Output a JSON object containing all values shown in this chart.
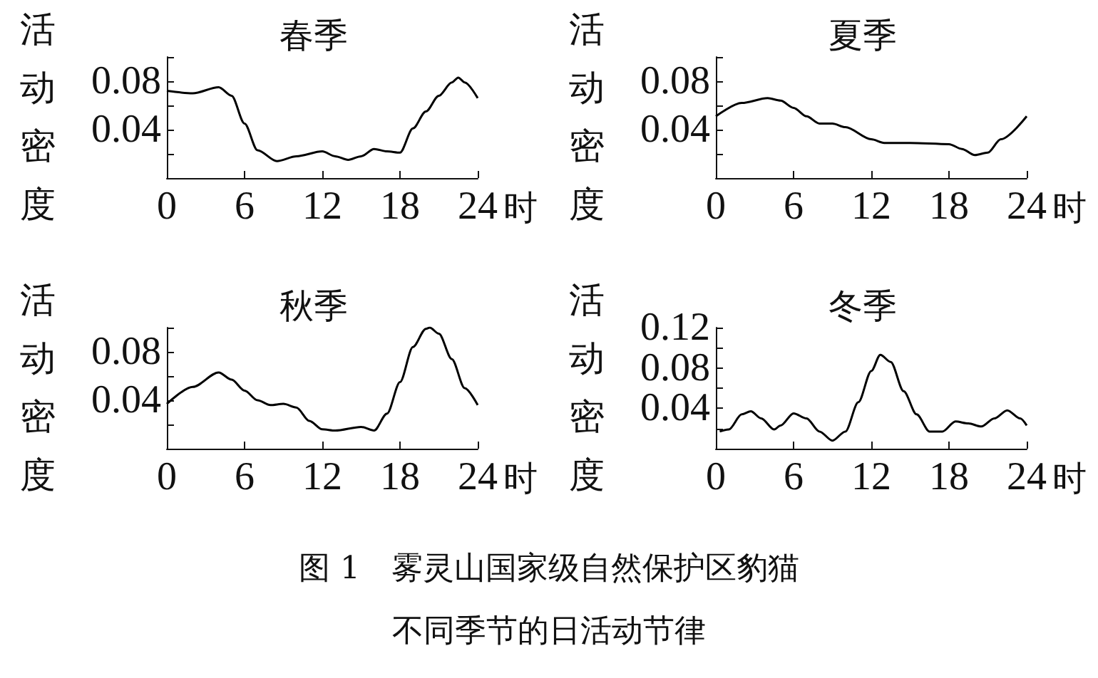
{
  "chart_data": [
    {
      "type": "line",
      "title": "春季",
      "xlabel": "时",
      "ylabel": "活动密度",
      "xlim": [
        0,
        24
      ],
      "xticks": [
        0,
        6,
        12,
        18,
        24
      ],
      "ylim": [
        0,
        0.1
      ],
      "yticks": [
        {
          "value": 0.02,
          "label": null
        },
        0.04,
        {
          "value": 0.06,
          "label": null
        },
        0.08,
        {
          "value": 0.1,
          "label": null
        }
      ],
      "grid": false,
      "marker": "none",
      "line_style": "solid",
      "series": [
        {
          "color": "#000000",
          "x": [
            0,
            2,
            4,
            5,
            6,
            7,
            8.5,
            10,
            12,
            13,
            14,
            15,
            16,
            17,
            18,
            19,
            20,
            21,
            22,
            22.5,
            23,
            24
          ],
          "values": [
            0.072,
            0.07,
            0.075,
            0.068,
            0.045,
            0.023,
            0.014,
            0.018,
            0.022,
            0.018,
            0.015,
            0.018,
            0.024,
            0.022,
            0.021,
            0.041,
            0.055,
            0.068,
            0.079,
            0.083,
            0.079,
            0.066
          ]
        }
      ]
    },
    {
      "type": "line",
      "title": "夏季",
      "xlabel": "时",
      "ylabel": "活动密度",
      "xlim": [
        0,
        24
      ],
      "xticks": [
        0,
        6,
        12,
        18,
        24
      ],
      "ylim": [
        0,
        0.1
      ],
      "yticks": [
        {
          "value": 0.02,
          "label": null
        },
        0.04,
        {
          "value": 0.06,
          "label": null
        },
        0.08,
        {
          "value": 0.1,
          "label": null
        }
      ],
      "grid": false,
      "marker": "none",
      "line_style": "solid",
      "series": [
        {
          "color": "#000000",
          "x": [
            0,
            2,
            4,
            5,
            6,
            7,
            8,
            9,
            10,
            12,
            13,
            15,
            18,
            19,
            20,
            21,
            22,
            24
          ],
          "values": [
            0.051,
            0.062,
            0.066,
            0.064,
            0.058,
            0.051,
            0.045,
            0.045,
            0.042,
            0.032,
            0.029,
            0.029,
            0.028,
            0.024,
            0.019,
            0.021,
            0.032,
            0.051
          ]
        }
      ]
    },
    {
      "type": "line",
      "title": "秋季",
      "xlabel": "时",
      "ylabel": "活动密度",
      "xlim": [
        0,
        24
      ],
      "xticks": [
        0,
        6,
        12,
        18,
        24
      ],
      "ylim": [
        0,
        0.1
      ],
      "yticks": [
        {
          "value": 0.02,
          "label": null
        },
        0.04,
        {
          "value": 0.06,
          "label": null
        },
        0.08,
        {
          "value": 0.1,
          "label": null
        }
      ],
      "grid": false,
      "marker": "none",
      "line_style": "solid",
      "series": [
        {
          "color": "#000000",
          "x": [
            0,
            2,
            4,
            5,
            6,
            7,
            8,
            9,
            10,
            11,
            12,
            13,
            15,
            16,
            17,
            18,
            19,
            20,
            20.3,
            21,
            22,
            23,
            24
          ],
          "values": [
            0.037,
            0.051,
            0.063,
            0.057,
            0.048,
            0.04,
            0.036,
            0.037,
            0.034,
            0.023,
            0.016,
            0.015,
            0.018,
            0.015,
            0.029,
            0.055,
            0.084,
            0.099,
            0.1,
            0.095,
            0.074,
            0.05,
            0.036
          ]
        }
      ]
    },
    {
      "type": "line",
      "title": "冬季",
      "xlabel": "时",
      "ylabel": "活动密度",
      "xlim": [
        0,
        24
      ],
      "xticks": [
        0,
        6,
        12,
        18,
        24
      ],
      "ylim": [
        0,
        0.12
      ],
      "yticks": [
        {
          "value": 0.02,
          "label": null
        },
        0.04,
        {
          "value": 0.06,
          "label": null
        },
        0.08,
        {
          "value": 0.1,
          "label": null
        },
        0.12
      ],
      "grid": false,
      "marker": "none",
      "line_style": "solid",
      "annotations": [
        "图 1　雾灵山国家级自然保护区豹猫",
        "不同季节的日活动节律"
      ],
      "series": [
        {
          "color": "#000000",
          "x": [
            0.3,
            1,
            2,
            2.7,
            3.5,
            4.5,
            5,
            6,
            7,
            8,
            9,
            10,
            11,
            12,
            12.7,
            13.5,
            14.5,
            15.5,
            16.5,
            17.5,
            18.5,
            19.5,
            20.5,
            21.5,
            22.5,
            23.5,
            24
          ],
          "values": [
            0.017,
            0.019,
            0.034,
            0.037,
            0.03,
            0.019,
            0.023,
            0.035,
            0.03,
            0.017,
            0.008,
            0.017,
            0.046,
            0.077,
            0.093,
            0.086,
            0.057,
            0.034,
            0.017,
            0.017,
            0.027,
            0.025,
            0.022,
            0.03,
            0.038,
            0.03,
            0.023
          ]
        }
      ]
    }
  ]
}
